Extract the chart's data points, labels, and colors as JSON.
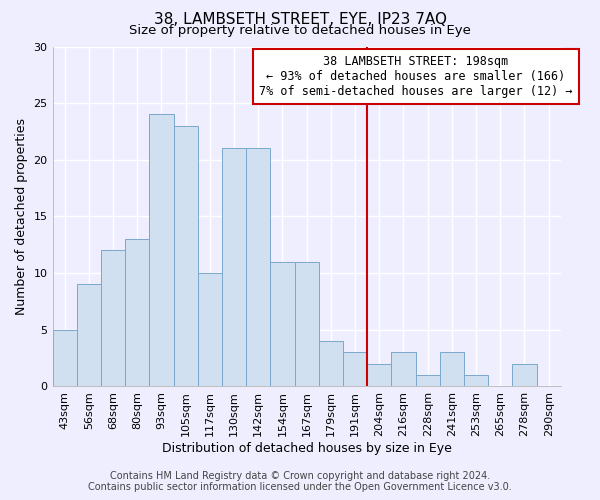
{
  "title": "38, LAMBSETH STREET, EYE, IP23 7AQ",
  "subtitle": "Size of property relative to detached houses in Eye",
  "xlabel": "Distribution of detached houses by size in Eye",
  "ylabel": "Number of detached properties",
  "bar_color": "#d0e0f0",
  "bar_edge_color": "#7aa8cc",
  "bins": [
    "43sqm",
    "56sqm",
    "68sqm",
    "80sqm",
    "93sqm",
    "105sqm",
    "117sqm",
    "130sqm",
    "142sqm",
    "154sqm",
    "167sqm",
    "179sqm",
    "191sqm",
    "204sqm",
    "216sqm",
    "228sqm",
    "241sqm",
    "253sqm",
    "265sqm",
    "278sqm",
    "290sqm"
  ],
  "values": [
    5,
    9,
    12,
    13,
    24,
    23,
    10,
    21,
    21,
    11,
    11,
    4,
    3,
    2,
    3,
    1,
    3,
    1,
    0,
    2,
    0
  ],
  "ylim": [
    0,
    30
  ],
  "yticks": [
    0,
    5,
    10,
    15,
    20,
    25,
    30
  ],
  "vline_color": "#cc0000",
  "annotation_title": "38 LAMBSETH STREET: 198sqm",
  "annotation_line1": "← 93% of detached houses are smaller (166)",
  "annotation_line2": "7% of semi-detached houses are larger (12) →",
  "annotation_box_color": "#ffffff",
  "annotation_box_edge": "#cc0000",
  "footer1": "Contains HM Land Registry data © Crown copyright and database right 2024.",
  "footer2": "Contains public sector information licensed under the Open Government Licence v3.0.",
  "background_color": "#eeeeff",
  "grid_color": "#ffffff",
  "title_fontsize": 11,
  "subtitle_fontsize": 9.5,
  "axis_label_fontsize": 9,
  "tick_fontsize": 8,
  "footer_fontsize": 7,
  "annotation_fontsize": 8.5
}
